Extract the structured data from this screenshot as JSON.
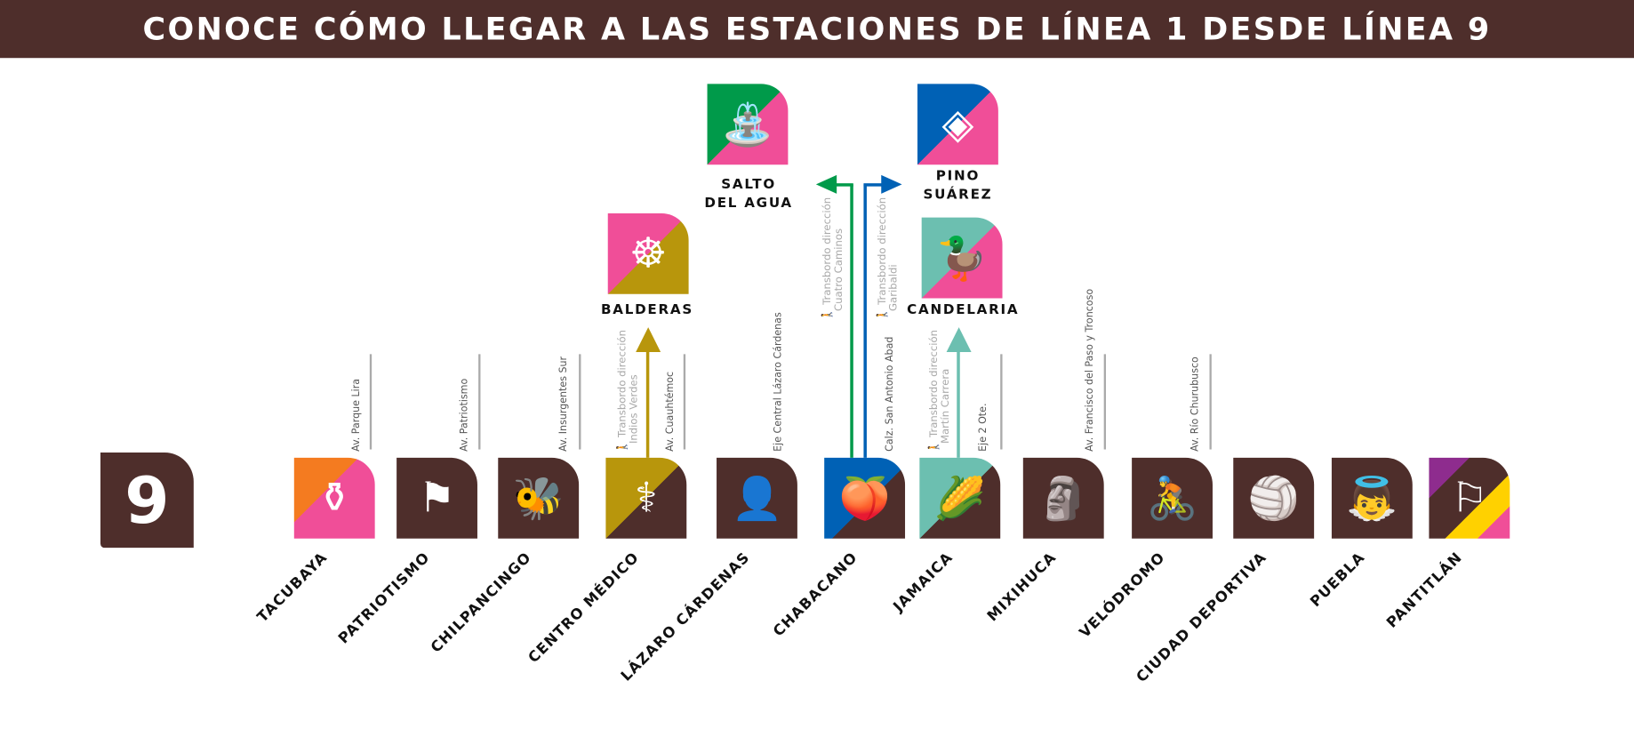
{
  "title": "CONOCE CÓMO LLEGAR A LAS ESTACIONES DE LÍNEA 1 DESDE LÍNEA 9",
  "line_badge": "9",
  "colors": {
    "brown": "#4e2e2b",
    "pink": "#f04e98",
    "gold": "#b8960c",
    "green": "#009a4a",
    "blue": "#0061b5",
    "teal": "#6cbfb0",
    "orange": "#f47b20",
    "purple": "#8e2c8e",
    "yellow": "#ffd100"
  },
  "stations": [
    {
      "name": "TACUBAYA",
      "icon": "vase-icon"
    },
    {
      "name": "PATRIOTISMO",
      "icon": "flag-icon"
    },
    {
      "name": "CHILPANCINGO",
      "icon": "wasp-icon"
    },
    {
      "name": "CENTRO MÉDICO",
      "icon": "caduceus-icon"
    },
    {
      "name": "LÁZARO CÁRDENAS",
      "icon": "portrait-icon"
    },
    {
      "name": "CHABACANO",
      "icon": "apricot-icon"
    },
    {
      "name": "JAMAICA",
      "icon": "corn-icon"
    },
    {
      "name": "MIXIHUCA",
      "icon": "seated-figure-icon"
    },
    {
      "name": "VELÓDROMO",
      "icon": "cyclist-icon"
    },
    {
      "name": "CIUDAD DEPORTIVA",
      "icon": "athlete-icon"
    },
    {
      "name": "PUEBLA",
      "icon": "angels-icon"
    },
    {
      "name": "PANTITLÁN",
      "icon": "pantitlan-flags-icon"
    }
  ],
  "streets": [
    "Av. Parque Lira",
    "Av. Patriotismo",
    "Av. Insurgentes Sur",
    "Av. Cuauhtémoc",
    "Eje Central Lázaro Cárdenas",
    "Calz. San Antonio Abad",
    "Eje 2 Ote.",
    "Av. Francisco del Paso y Troncoso",
    "Av. Río Churubusco"
  ],
  "transfers": [
    {
      "line1": "Transbordo dirección",
      "line2": "Indios Verdes"
    },
    {
      "line1": "Transbordo dirección",
      "line2": "Cuatro Caminos"
    },
    {
      "line1": "Transbordo dirección",
      "line2": "Garibaldi"
    },
    {
      "line1": "Transbordo dirección",
      "line2": "Martín Carrera"
    }
  ],
  "line1_stations": [
    {
      "name1": "SALTO",
      "name2": "DEL AGUA",
      "icon": "fountain-icon"
    },
    {
      "name1": "PINO",
      "name2": "SUÁREZ",
      "icon": "pyramid-icon"
    },
    {
      "name1": "BALDERAS",
      "name2": "",
      "icon": "cannon-icon"
    },
    {
      "name1": "CANDELARIA",
      "name2": "",
      "icon": "duck-icon"
    }
  ]
}
